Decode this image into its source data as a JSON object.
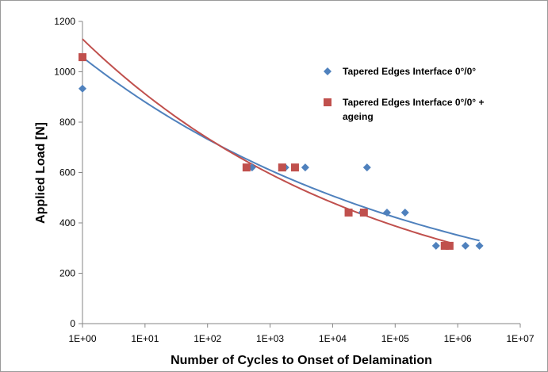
{
  "chart_data": {
    "type": "scatter",
    "xlabel": "Number of Cycles to Onset of Delamination",
    "ylabel": "Applied Load [N]",
    "xscale": "log",
    "xlim": [
      1,
      10000000
    ],
    "xticks": [
      {
        "value": 1,
        "label": "1E+00"
      },
      {
        "value": 10,
        "label": "1E+01"
      },
      {
        "value": 100,
        "label": "1E+02"
      },
      {
        "value": 1000,
        "label": "1E+03"
      },
      {
        "value": 10000,
        "label": "1E+04"
      },
      {
        "value": 100000,
        "label": "1E+05"
      },
      {
        "value": 1000000,
        "label": "1E+06"
      },
      {
        "value": 10000000,
        "label": "1E+07"
      }
    ],
    "ylim": [
      0,
      1200
    ],
    "yticks": [
      0,
      200,
      400,
      600,
      800,
      1000,
      1200
    ],
    "grid": false,
    "trendline": "power",
    "series": [
      {
        "name": "Tapered Edges Interface 0°/0°",
        "color": "#4f81bd",
        "marker": "diamond",
        "x": [
          1,
          515,
          1750,
          3650,
          35500,
          29600,
          74000,
          144000,
          450000,
          1330000,
          2230000
        ],
        "values": [
          933,
          620,
          620,
          620,
          620,
          441,
          441,
          441,
          309,
          309,
          309
        ]
      },
      {
        "name": "Tapered Edges Interface 0°/0° + ageing",
        "color": "#c0504d",
        "marker": "square",
        "x": [
          1,
          420,
          1560,
          2500,
          18000,
          31600,
          620000,
          740000
        ],
        "values": [
          1058,
          620,
          620,
          620,
          441,
          441,
          309,
          309
        ]
      }
    ]
  }
}
